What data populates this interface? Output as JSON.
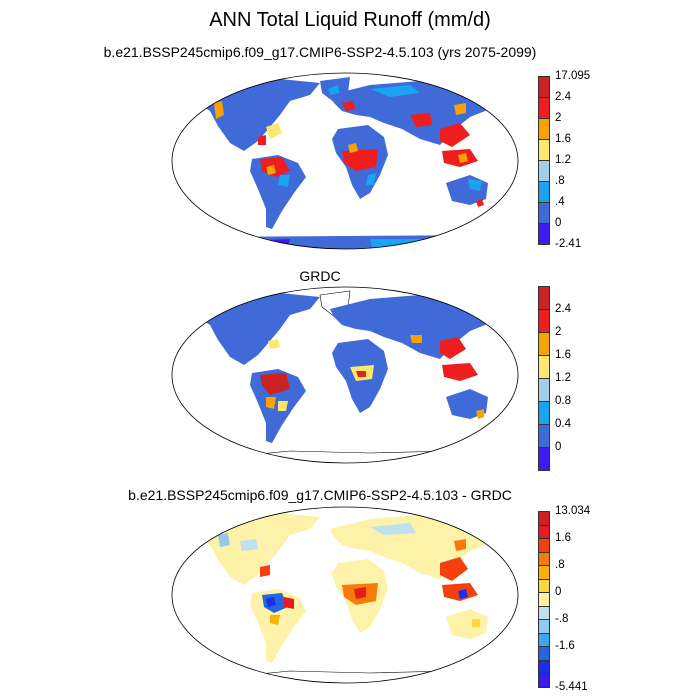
{
  "page_title": "ANN Total Liquid Runoff (mm/d)",
  "panels": [
    {
      "title": "b.e21.BSSP245cmip6.f09_g17.CMIP6-SSP2-4.5.103 (yrs 2075-2099)",
      "colorbar": {
        "labels": [
          "17.095",
          "2.4",
          "2",
          "1.6",
          "1.2",
          ".8",
          ".4",
          "0",
          "-2.41"
        ],
        "colors": [
          "#cc2222",
          "#ee1e1e",
          "#f6a300",
          "#fde76c",
          "#a4cde9",
          "#1aa3f0",
          "#3f6ad8",
          "#3a1cf0"
        ]
      }
    },
    {
      "title": "GRDC",
      "colorbar": {
        "labels": [
          "2.4",
          "2",
          "1.6",
          "1.2",
          "0.8",
          "0.4",
          "0"
        ],
        "colors": [
          "#cc2222",
          "#ee1e1e",
          "#f6a300",
          "#fde76c",
          "#a4cde9",
          "#1aa3f0",
          "#3f6ad8",
          "#3a1cf0"
        ]
      }
    },
    {
      "title": "b.e21.BSSP245cmip6.f09_g17.CMIP6-SSP2-4.5.103 - GRDC",
      "colorbar": {
        "labels": [
          "13.034",
          "1.6",
          ".8",
          "0",
          "-.8",
          "-1.6",
          "-5.441"
        ],
        "colors": [
          "#cc2020",
          "#e61b1b",
          "#f4400c",
          "#f77a0a",
          "#f9b208",
          "#fcd83e",
          "#fdf2a8",
          "#bfe0f0",
          "#8fcbf0",
          "#3fa6ee",
          "#2266e0",
          "#1a30e8",
          "#3a1cf0"
        ]
      }
    }
  ]
}
